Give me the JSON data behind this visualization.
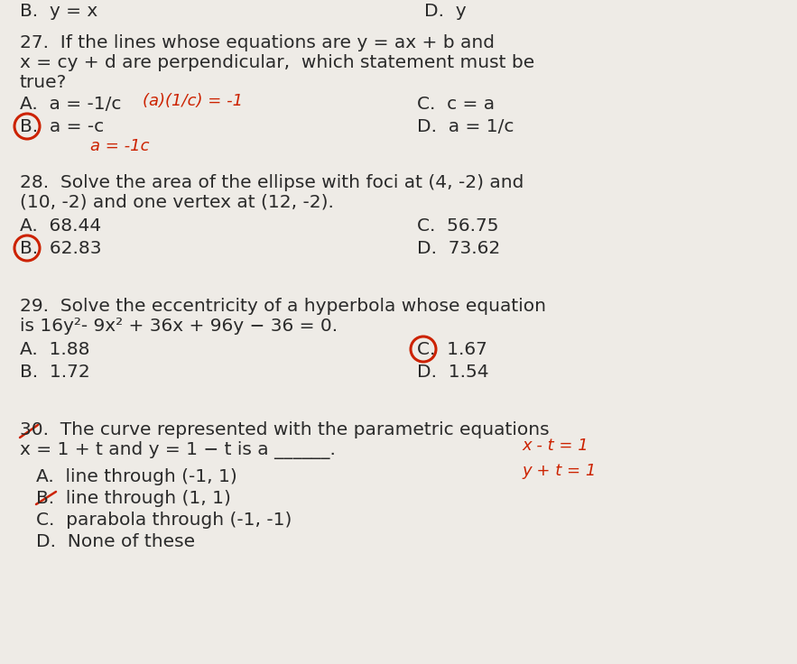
{
  "bg_color": "#eeebe6",
  "text_color": "#2a2a2a",
  "red_color": "#cc2200",
  "font_size_main": 14.5,
  "font_size_annot": 13.0,
  "header_left": "B.  y = x",
  "header_right": "D.  y",
  "q27_line1": "27.  If the lines whose equations are y = ax + b and",
  "q27_line2": "x = cy + d are perpendicular,  which statement must be",
  "q27_line3": "true?",
  "q27_A": "A.  a = -1/c",
  "q27_annot1": "(a)(1/c) = -1",
  "q27_C": "C.  c = a",
  "q27_B": "B.  a = -c",
  "q27_annot2": "a = -1c",
  "q27_D": "D.  a = 1/c",
  "q28_line1": "28.  Solve the area of the ellipse with foci at (4, -2) and",
  "q28_line2": "(10, -2) and one vertex at (12, -2).",
  "q28_A": "A.  68.44",
  "q28_C": "C.  56.75",
  "q28_B": "B.  62.83",
  "q28_D": "D.  73.62",
  "q29_line1": "29.  Solve the eccentricity of a hyperbola whose equation",
  "q29_line2": "is 16y²- 9x² + 36x + 96y − 36 = 0.",
  "q29_A": "A.  1.88",
  "q29_C": "C.  1.67",
  "q29_B": "B.  1.72",
  "q29_D": "D.  1.54",
  "q30_line1": "30.  The curve represented with the parametric equations",
  "q30_line2": "x = 1 + t and y = 1 − t is a ______.",
  "q30_annot1": "x - t = 1",
  "q30_annot2": "y + t = 1",
  "q30_A": "A.  line through (-1, 1)",
  "q30_B": "B.  line through (1, 1)",
  "q30_C": "C.  parabola through (-1, -1)",
  "q30_D": "D.  None of these"
}
